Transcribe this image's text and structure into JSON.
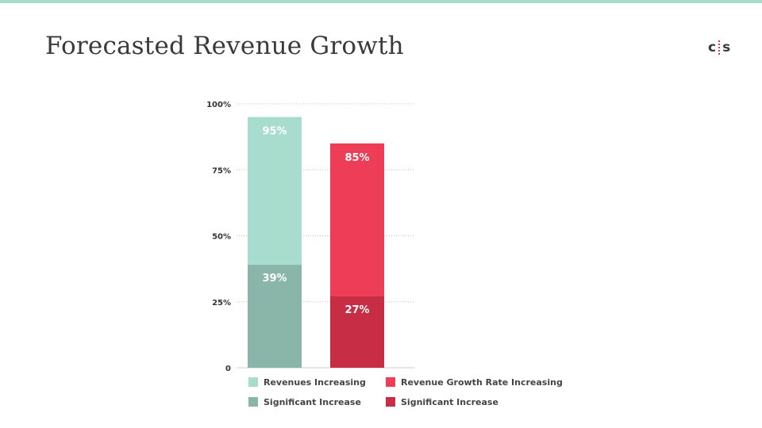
{
  "header": {
    "title": "Forecasted Revenue Growth",
    "logo_left": "c",
    "logo_right": "s"
  },
  "colors": {
    "top_bar": "#a8dccd",
    "revenues_increasing": "#a8dccd",
    "revenues_significant": "#8ab6aa",
    "growth_rate_increasing": "#ee3e57",
    "growth_rate_significant": "#c72d45",
    "title": "#3a3a3a"
  },
  "chart_data": {
    "type": "bar",
    "stacked": false,
    "overlaid": true,
    "ylim": [
      0,
      100
    ],
    "yticks": [
      {
        "value": 0,
        "label": "0"
      },
      {
        "value": 25,
        "label": "25%"
      },
      {
        "value": 50,
        "label": "50%"
      },
      {
        "value": 75,
        "label": "75%"
      },
      {
        "value": 100,
        "label": "100%"
      }
    ],
    "grid": true,
    "legend_position": "bottom",
    "bars": [
      {
        "total": {
          "name": "Revenues Increasing",
          "value": 95,
          "label": "95%",
          "color": "#a8dccd"
        },
        "part": {
          "name": "Significant Increase",
          "value": 39,
          "label": "39%",
          "color": "#8ab6aa"
        }
      },
      {
        "total": {
          "name": "Revenue Growth Rate Increasing",
          "value": 85,
          "label": "85%",
          "color": "#ee3e57"
        },
        "part": {
          "name": "Significant Increase",
          "value": 27,
          "label": "27%",
          "color": "#c72d45"
        }
      }
    ],
    "legend": [
      {
        "label": "Revenues Increasing",
        "color": "#a8dccd"
      },
      {
        "label": "Revenue Growth Rate Increasing",
        "color": "#ee3e57"
      },
      {
        "label": "Significant Increase",
        "color": "#8ab6aa"
      },
      {
        "label": "Significant Increase",
        "color": "#c72d45"
      }
    ]
  }
}
